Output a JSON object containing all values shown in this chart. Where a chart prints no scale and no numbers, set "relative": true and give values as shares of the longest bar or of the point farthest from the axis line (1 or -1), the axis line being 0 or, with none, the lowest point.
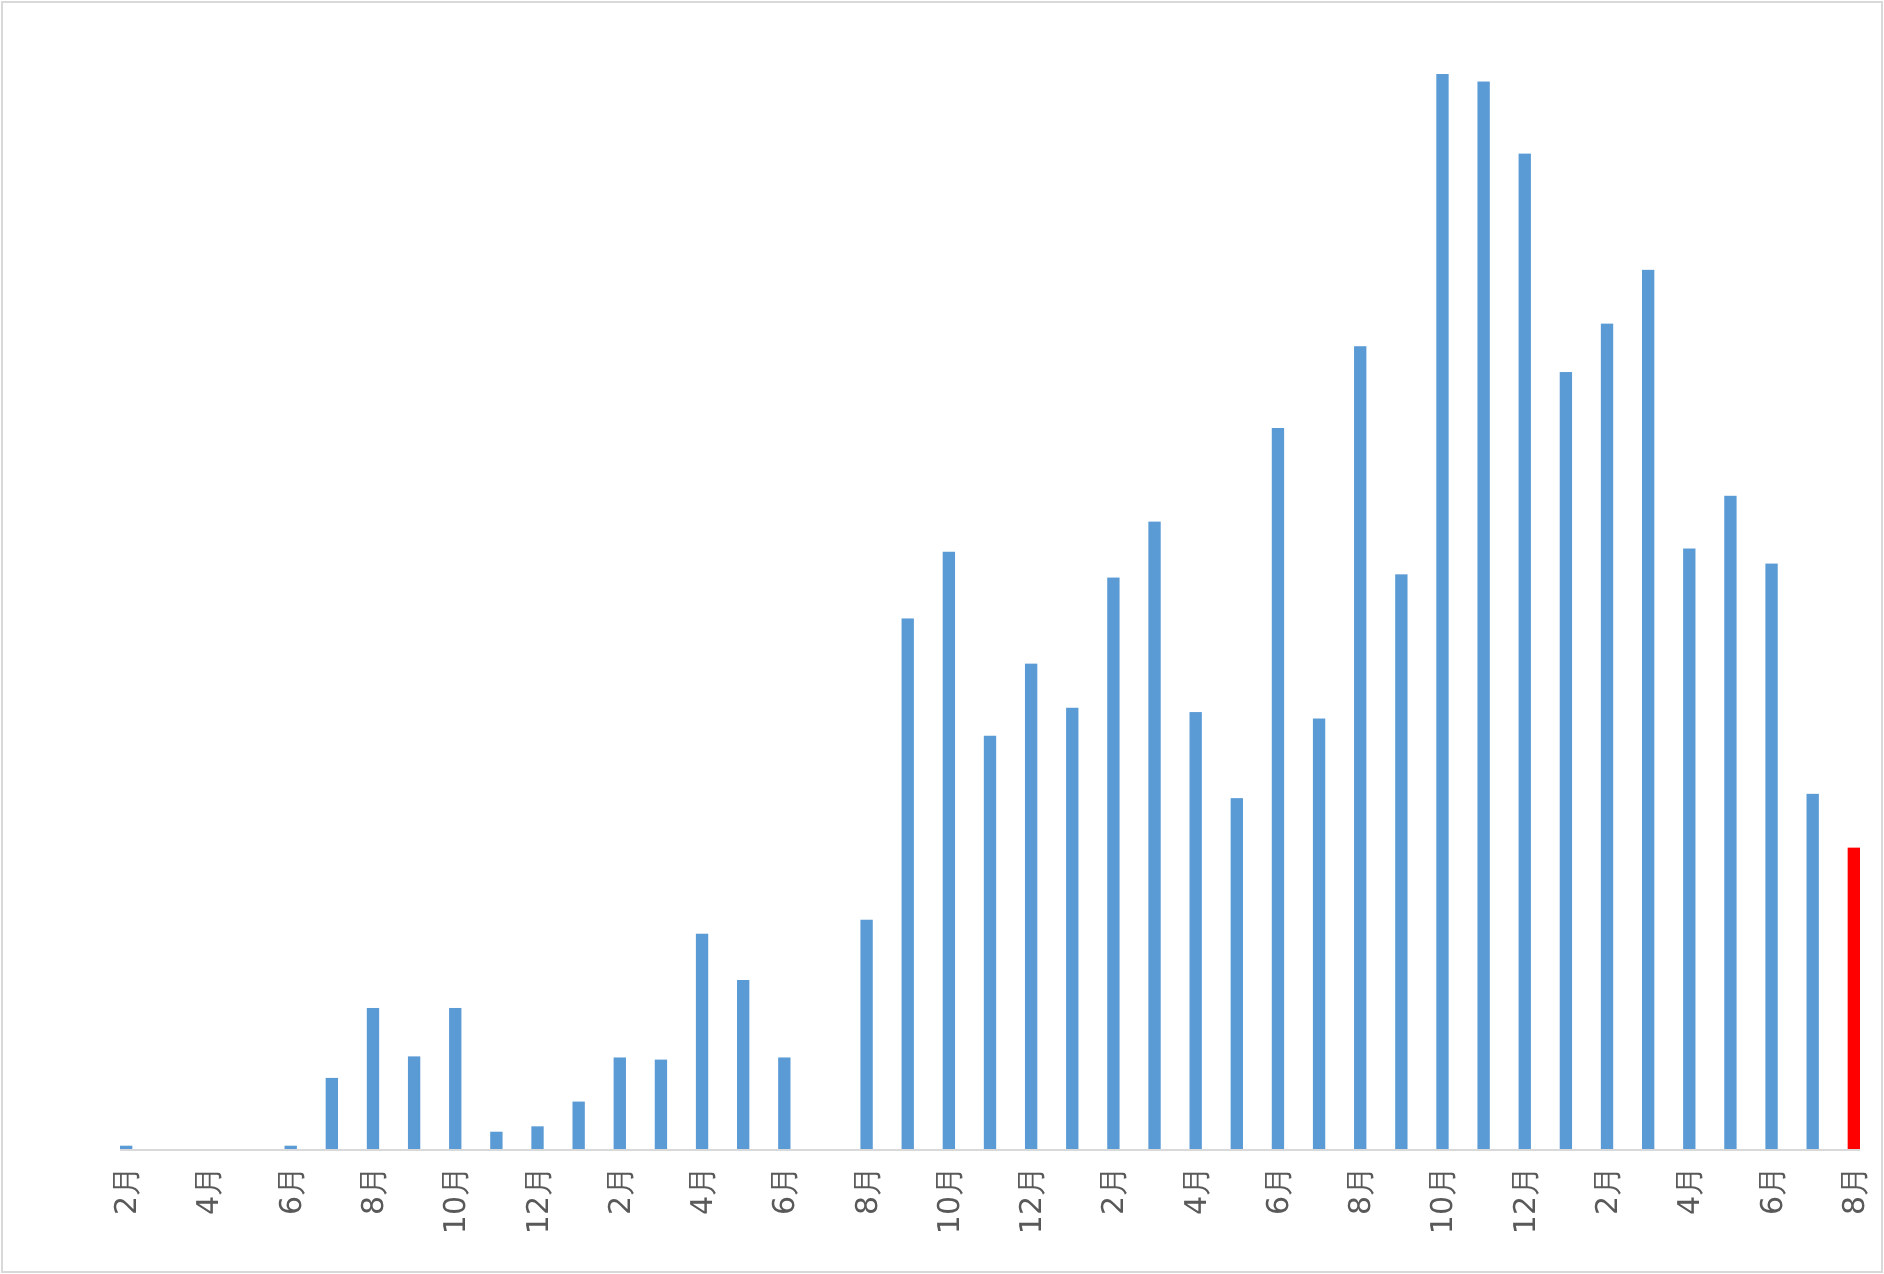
{
  "chart_data": {
    "type": "bar",
    "relative": true,
    "categories": [
      "2月",
      null,
      "4月",
      null,
      "6月",
      null,
      "8月",
      null,
      "10月",
      null,
      "12月",
      null,
      "2月",
      null,
      "4月",
      null,
      "6月",
      null,
      "8月",
      null,
      "10月",
      null,
      "12月",
      null,
      "2月",
      null,
      "4月",
      null,
      "6月",
      null,
      "8月",
      null,
      "10月",
      null,
      "12月",
      null,
      "2月",
      null,
      "4月",
      null,
      "6月",
      null,
      "8月"
    ],
    "values": [
      0.004,
      0,
      0,
      0,
      0.004,
      0.067,
      0.132,
      0.087,
      0.132,
      0.017,
      0.022,
      0.045,
      0.086,
      0.084,
      0.201,
      0.158,
      0.086,
      0,
      0.214,
      0.494,
      0.556,
      0.385,
      0.452,
      0.411,
      0.532,
      0.584,
      0.407,
      0.327,
      0.671,
      0.401,
      0.747,
      0.535,
      1,
      0.993,
      0.926,
      0.723,
      0.768,
      0.818,
      0.559,
      0.608,
      0.545,
      0.331,
      0.281
    ],
    "colors": [
      "#5b9bd5",
      "#5b9bd5",
      "#5b9bd5",
      "#5b9bd5",
      "#5b9bd5",
      "#5b9bd5",
      "#5b9bd5",
      "#5b9bd5",
      "#5b9bd5",
      "#5b9bd5",
      "#5b9bd5",
      "#5b9bd5",
      "#5b9bd5",
      "#5b9bd5",
      "#5b9bd5",
      "#5b9bd5",
      "#5b9bd5",
      "#5b9bd5",
      "#5b9bd5",
      "#5b9bd5",
      "#5b9bd5",
      "#5b9bd5",
      "#5b9bd5",
      "#5b9bd5",
      "#5b9bd5",
      "#5b9bd5",
      "#5b9bd5",
      "#5b9bd5",
      "#5b9bd5",
      "#5b9bd5",
      "#5b9bd5",
      "#5b9bd5",
      "#5b9bd5",
      "#5b9bd5",
      "#5b9bd5",
      "#5b9bd5",
      "#5b9bd5",
      "#5b9bd5",
      "#5b9bd5",
      "#5b9bd5",
      "#5b9bd5",
      "#5b9bd5",
      "#ff0000"
    ]
  }
}
